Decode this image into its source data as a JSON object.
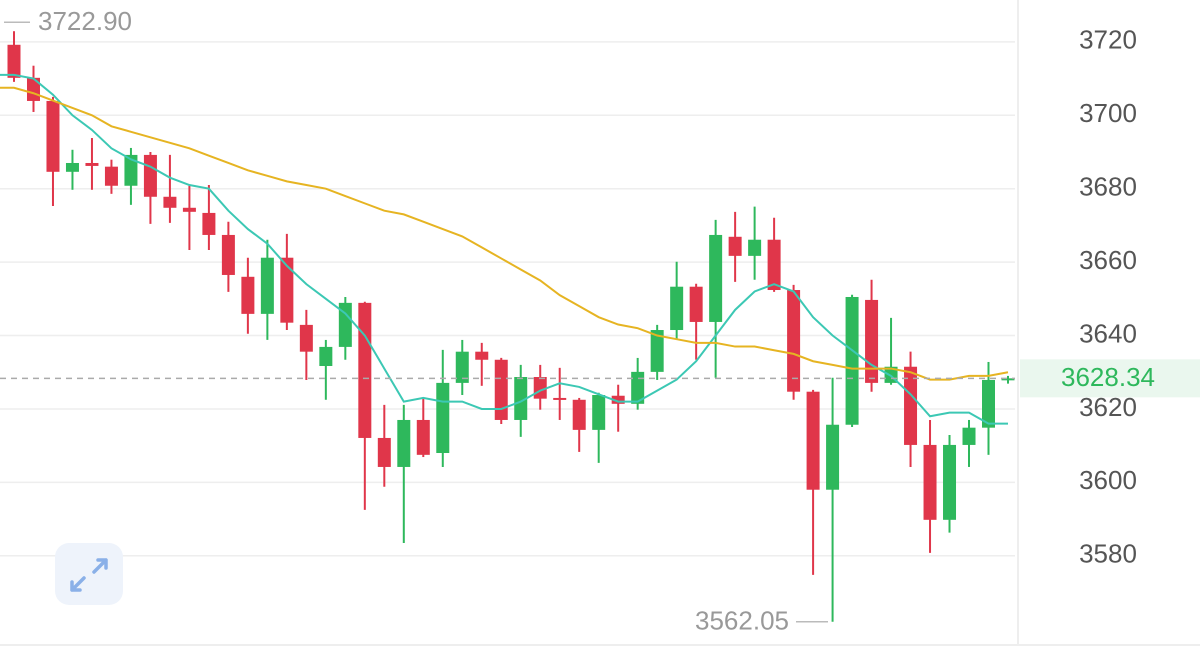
{
  "chart_data": {
    "type": "candlestick",
    "ylim": [
      3555.7,
      3731.4
    ],
    "yticks": [
      3580,
      3600,
      3620,
      3640,
      3660,
      3680,
      3700,
      3720
    ],
    "grid": true,
    "up_color": "#2eb85c",
    "down_color": "#e0364a",
    "open": [
      3719.2,
      3710.2,
      3703.9,
      3684.6,
      3687.0,
      3686.0,
      3680.8,
      3689.2,
      3677.8,
      3674.8,
      3673.4,
      3667.4,
      3656.0,
      3645.9,
      3661.2,
      3642.9,
      3631.7,
      3636.9,
      3648.9,
      3612.1,
      3604.2,
      3617.0,
      3608.0,
      3627.1,
      3635.6,
      3633.4,
      3617.0,
      3628.7,
      3623.0,
      3622.5,
      3614.3,
      3623.6,
      3621.4,
      3630.1,
      3641.5,
      3653.3,
      3643.7,
      3666.9,
      3661.7,
      3666.1,
      3652.4,
      3624.7,
      3598.0,
      3615.7,
      3649.7,
      3627.1,
      3631.5,
      3610.2,
      3589.8,
      3610.2,
      3614.9,
      3628.0
    ],
    "high": [
      3722.9,
      3713.5,
      3705.0,
      3690.6,
      3693.8,
      3687.9,
      3691.1,
      3690.0,
      3689.2,
      3680.8,
      3681.0,
      3671.0,
      3661.2,
      3666.1,
      3667.7,
      3647.0,
      3638.8,
      3650.5,
      3649.2,
      3621.1,
      3621.1,
      3623.0,
      3636.1,
      3638.8,
      3638.0,
      3633.9,
      3632.0,
      3632.0,
      3631.2,
      3623.0,
      3624.4,
      3626.6,
      3633.9,
      3642.9,
      3660.1,
      3654.1,
      3671.5,
      3673.7,
      3675.1,
      3672.1,
      3653.8,
      3625.2,
      3628.5,
      3651.1,
      3655.2,
      3644.8,
      3635.6,
      3617.0,
      3612.9,
      3617.0,
      3632.8,
      3629.0
    ],
    "low": [
      3709.1,
      3700.9,
      3675.3,
      3679.7,
      3679.7,
      3678.6,
      3675.6,
      3670.4,
      3670.7,
      3663.3,
      3663.3,
      3651.9,
      3640.5,
      3638.8,
      3641.5,
      3627.9,
      3622.5,
      3633.4,
      3592.5,
      3598.8,
      3583.5,
      3606.9,
      3604.2,
      3623.8,
      3626.3,
      3615.9,
      3612.4,
      3619.8,
      3617.0,
      3608.3,
      3605.3,
      3613.8,
      3619.8,
      3627.9,
      3638.8,
      3633.4,
      3628.5,
      3654.6,
      3655.2,
      3651.9,
      3622.5,
      3574.8,
      3562.05,
      3615.1,
      3624.7,
      3626.6,
      3604.2,
      3580.8,
      3586.3,
      3604.2,
      3607.5,
      3626.9
    ],
    "close": [
      3710.2,
      3703.9,
      3684.6,
      3687.0,
      3686.2,
      3680.8,
      3689.2,
      3677.8,
      3674.8,
      3673.7,
      3667.4,
      3656.5,
      3645.9,
      3661.2,
      3643.5,
      3635.6,
      3636.9,
      3648.9,
      3612.1,
      3604.2,
      3617.0,
      3607.5,
      3627.1,
      3635.6,
      3633.4,
      3617.0,
      3628.7,
      3622.8,
      3622.5,
      3614.3,
      3623.8,
      3621.4,
      3630.1,
      3641.5,
      3653.3,
      3643.7,
      3667.4,
      3661.7,
      3666.1,
      3652.4,
      3624.7,
      3598.0,
      3615.7,
      3650.5,
      3627.1,
      3631.5,
      3610.2,
      3589.8,
      3610.2,
      3614.9,
      3627.9,
      3628.34
    ],
    "moving_averages": [
      {
        "color": "#3cc8b4",
        "values": [
          3711,
          3710,
          3705.6,
          3700,
          3696,
          3691,
          3688,
          3686,
          3683,
          3681,
          3680,
          3674,
          3669,
          3665,
          3659,
          3654,
          3650,
          3646,
          3640,
          3631,
          3622,
          3623,
          3622,
          3622,
          3620,
          3620,
          3622,
          3625,
          3627,
          3626,
          3624,
          3622,
          3622,
          3625,
          3628,
          3633,
          3640,
          3647,
          3652,
          3654,
          3652,
          3645,
          3640,
          3636,
          3632,
          3629,
          3624,
          3618,
          3619,
          3619,
          3616,
          3616
        ]
      },
      {
        "color": "#e6b422",
        "values": [
          3707.5,
          3706,
          3704,
          3702,
          3700,
          3697,
          3695.5,
          3694,
          3692.5,
          3691,
          3689,
          3687,
          3685,
          3683.5,
          3682,
          3681,
          3680,
          3678,
          3676,
          3674,
          3673,
          3671,
          3669,
          3667,
          3664,
          3661,
          3658,
          3655,
          3651,
          3648,
          3645,
          3643,
          3642,
          3640,
          3639,
          3638,
          3638,
          3637,
          3637,
          3636,
          3635,
          3633,
          3632,
          3631,
          3631,
          3631,
          3630,
          3628,
          3628,
          3629,
          3629,
          3630
        ]
      }
    ],
    "high_marker": {
      "value": 3722.9,
      "label": "3722.90"
    },
    "low_marker": {
      "value": 3562.05,
      "label": "3562.05"
    },
    "current_price": {
      "value": 3628.34,
      "label": "3628.34",
      "color": "#2eb85c"
    }
  }
}
